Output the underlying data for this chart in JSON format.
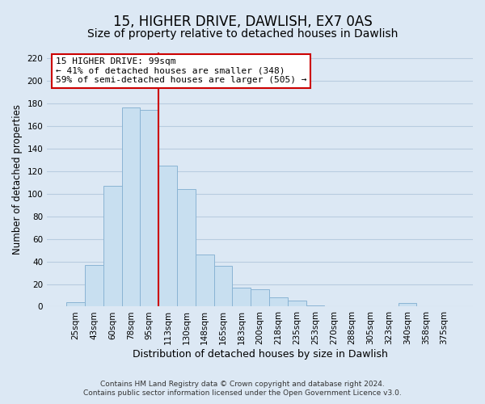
{
  "title": "15, HIGHER DRIVE, DAWLISH, EX7 0AS",
  "subtitle": "Size of property relative to detached houses in Dawlish",
  "xlabel": "Distribution of detached houses by size in Dawlish",
  "ylabel": "Number of detached properties",
  "bar_labels": [
    "25sqm",
    "43sqm",
    "60sqm",
    "78sqm",
    "95sqm",
    "113sqm",
    "130sqm",
    "148sqm",
    "165sqm",
    "183sqm",
    "200sqm",
    "218sqm",
    "235sqm",
    "253sqm",
    "270sqm",
    "288sqm",
    "305sqm",
    "323sqm",
    "340sqm",
    "358sqm",
    "375sqm"
  ],
  "bar_values": [
    4,
    37,
    107,
    176,
    174,
    125,
    104,
    46,
    36,
    17,
    15,
    8,
    5,
    1,
    0,
    0,
    0,
    0,
    3,
    0,
    0
  ],
  "bar_color": "#c8dff0",
  "bar_edge_color": "#8ab4d4",
  "vline_x": 4.5,
  "vline_color": "#cc0000",
  "annotation_text": "15 HIGHER DRIVE: 99sqm\n← 41% of detached houses are smaller (348)\n59% of semi-detached houses are larger (505) →",
  "annotation_box_color": "#ffffff",
  "annotation_box_edge_color": "#cc0000",
  "ylim": [
    0,
    225
  ],
  "yticks": [
    0,
    20,
    40,
    60,
    80,
    100,
    120,
    140,
    160,
    180,
    200,
    220
  ],
  "grid_color": "#b8cce0",
  "background_color": "#dce8f4",
  "footer_line1": "Contains HM Land Registry data © Crown copyright and database right 2024.",
  "footer_line2": "Contains public sector information licensed under the Open Government Licence v3.0.",
  "title_fontsize": 12,
  "subtitle_fontsize": 10,
  "xlabel_fontsize": 9,
  "ylabel_fontsize": 8.5,
  "tick_fontsize": 7.5,
  "footer_fontsize": 6.5
}
